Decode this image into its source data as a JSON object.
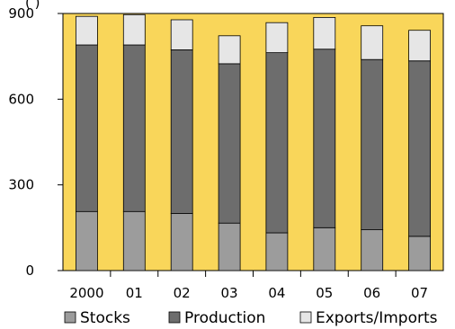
{
  "chart_data": {
    "type": "bar",
    "stacked": true,
    "title": "",
    "xlabel": "",
    "ylabel": "",
    "categories": [
      "2000",
      "01",
      "02",
      "03",
      "04",
      "05",
      "06",
      "07"
    ],
    "ylim": [
      0,
      900
    ],
    "yticks": [
      0,
      300,
      600,
      900
    ],
    "grid": false,
    "legend_position": "bottom",
    "plot_background": "#F9D65A",
    "series": [
      {
        "name": "Stocks",
        "color": "#9C9C9C",
        "values": [
          207,
          207,
          200,
          166,
          132,
          150,
          143,
          120
        ]
      },
      {
        "name": "Production",
        "color": "#6D6D6D",
        "values": [
          583,
          583,
          573,
          558,
          631,
          625,
          596,
          614
        ]
      },
      {
        "name": "Exports/Imports",
        "color": "#E6E6E6",
        "values": [
          100,
          106,
          105,
          98,
          105,
          111,
          118,
          107
        ]
      }
    ]
  },
  "header_fragment": "(                    )"
}
